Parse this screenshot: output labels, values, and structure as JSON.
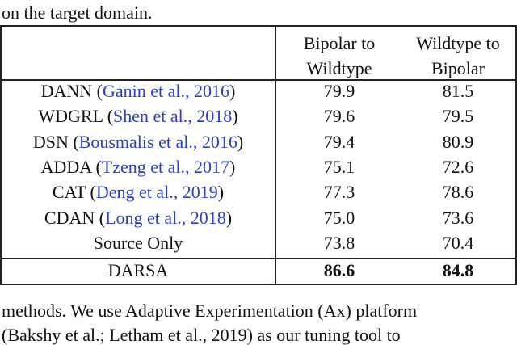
{
  "caption_tail": "on the target domain.",
  "table": {
    "header": [
      "",
      "Bipolar to\nWildtype",
      "Wildtype to\nBipolar"
    ],
    "rows": [
      {
        "name": [
          "DANN (",
          "Ganin et al., 2016",
          ")"
        ],
        "values": [
          "79.9",
          "81.5"
        ]
      },
      {
        "name": [
          "WDGRL (",
          "Shen et al., 2018",
          ")"
        ],
        "values": [
          "79.6",
          "79.5"
        ]
      },
      {
        "name": [
          "DSN (",
          "Bousmalis et al., 2016",
          ")"
        ],
        "values": [
          "79.4",
          "80.9"
        ]
      },
      {
        "name": [
          "ADDA (",
          "Tzeng et al., 2017",
          ")"
        ],
        "values": [
          "75.1",
          "72.6"
        ]
      },
      {
        "name": [
          "CAT (",
          "Deng et al., 2019",
          ")"
        ],
        "values": [
          "77.3",
          "78.6"
        ]
      },
      {
        "name": [
          "CDAN (",
          "Long et al., 2018",
          ")"
        ],
        "values": [
          "75.0",
          "73.6"
        ]
      },
      {
        "name": [
          "Source Only"
        ],
        "values": [
          "73.8",
          "70.4"
        ]
      }
    ],
    "best": {
      "name": [
        "DARSA"
      ],
      "values": [
        "86.6",
        "84.8"
      ]
    }
  },
  "body_text": [
    "methods. We use Adaptive Experimentation (Ax) platform",
    "(Bakshy et al.; Letham et al., 2019) as our tuning tool to"
  ]
}
